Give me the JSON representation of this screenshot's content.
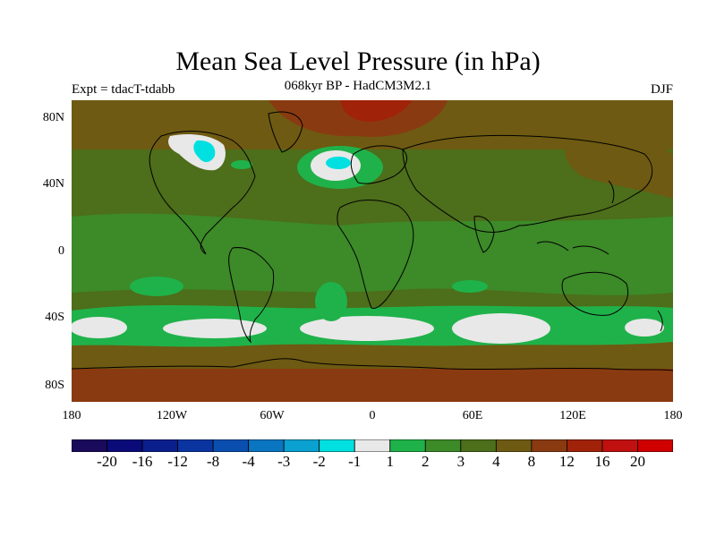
{
  "title": "Mean Sea Level Pressure (in hPa)",
  "left_label": "Expt = tdacT-tdabb",
  "center_label": "068kyr BP - HadCM3M2.1",
  "right_label": "DJF",
  "lat_ticks": [
    "80N",
    "40N",
    "0",
    "40S",
    "80S"
  ],
  "lon_ticks": [
    "180",
    "120W",
    "60W",
    "0",
    "60E",
    "120E",
    "180"
  ],
  "colorbar": {
    "labels": [
      "-20",
      "-16",
      "-12",
      "-8",
      "-4",
      "-3",
      "-2",
      "-1",
      "1",
      "2",
      "3",
      "4",
      "8",
      "12",
      "16",
      "20"
    ],
    "colors": [
      "#1a0a5c",
      "#0a0a78",
      "#0a1f8c",
      "#0a35a0",
      "#0a4fb0",
      "#0a75c0",
      "#0aa0d0",
      "#00e0e0",
      "#e8e8e8",
      "#1fb24a",
      "#3c8a28",
      "#4d6e1a",
      "#6e5a12",
      "#8a3a10",
      "#a02208",
      "#c01010",
      "#d00000"
    ]
  },
  "field_colors": {
    "ocean_base": "#4d6e1a",
    "brown": "#6e5a12",
    "darkbrown": "#8a3a10",
    "red": "#a02208",
    "green": "#3c8a28",
    "light_green": "#1fb24a",
    "white": "#e8e8e8",
    "cyan": "#00e0e0",
    "coast": "#000000"
  }
}
